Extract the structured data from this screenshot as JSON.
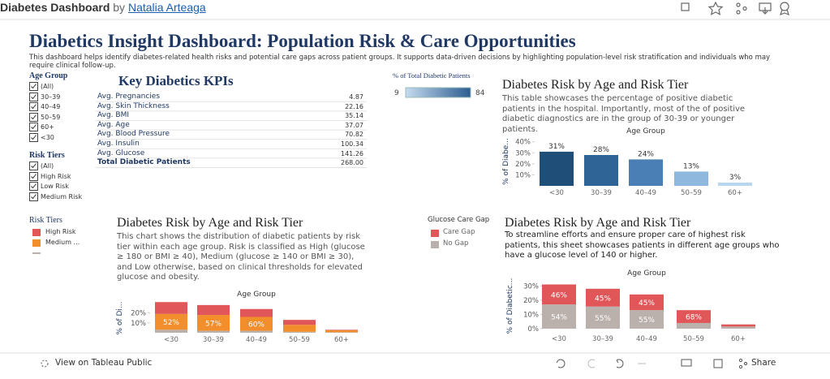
{
  "header": {
    "site": "Diabetes Dashboard",
    "by": "by",
    "author": "Natalia Arteaga"
  },
  "title": "Diabetics Insight Dashboard: Population Risk & Care Opportunities",
  "description": "This dashboard helps identify diabetes-related health risks and potential care gaps across patient groups. It supports data-driven decisions by highlighting population-level risk stratification and individuals who may require clinical follow-up.",
  "filters": [
    {
      "title": "Age Group",
      "options": [
        "(All)",
        "30–39",
        "40–49",
        "50–59",
        "60+",
        "<30"
      ]
    },
    {
      "title": "Risk Tiers",
      "options": [
        "(All)",
        "High Risk",
        "Low Risk",
        "Medium Risk"
      ]
    }
  ],
  "risk_legend": {
    "title": "Risk Tiers",
    "items": [
      {
        "label": "High Risk",
        "color": "#e15759"
      },
      {
        "label": "Medium ...",
        "color": "#f28e2b"
      }
    ]
  },
  "kpis": {
    "title": "Key Diabetics KPIs",
    "rows": [
      [
        "Avg. Pregnancies",
        "4.87"
      ],
      [
        "Avg. Skin Thickness",
        "22.16"
      ],
      [
        "Avg. BMI",
        "35.14"
      ],
      [
        "Avg. Age",
        "37.07"
      ],
      [
        "Avg. Blood Pressure",
        "70.82"
      ],
      [
        "Avg. Insulin",
        "100.34"
      ],
      [
        "Avg. Glucose",
        "141.26"
      ],
      [
        "Total Diabetic Patients",
        "268.00"
      ]
    ]
  },
  "color_legend": {
    "title": "% of Total Diabetic Patients",
    "min": 9,
    "max": 84,
    "colors": [
      "#c6dbef",
      "#2b5c8f"
    ]
  },
  "charts": [
    {
      "title": "Diabetes Risk by Age and Risk Tier",
      "description": "This table showcases the percentage of positive diabetic patients in the hospital. Importantly, most of the  of positive diabetic diagnostics are in the group of 30-39 or younger patients.",
      "axis_title": "Age Group",
      "y_label": "% of Diabe...",
      "categories": [
        "<30",
        "30–39",
        "40–49",
        "50–59",
        "60+"
      ],
      "ylim": [
        0,
        42
      ],
      "yticks": [
        {
          "value": 10,
          "label": "10%"
        },
        {
          "value": 20,
          "label": "20%"
        },
        {
          "value": 30,
          "label": "30%"
        },
        {
          "value": 40,
          "label": "40%"
        }
      ],
      "series": [
        {
          "values": [
            31,
            28,
            24,
            13,
            3
          ],
          "value_labels": [
            "31%",
            "28%",
            "24%",
            "13%",
            "3%"
          ],
          "colors": [
            "#1f4e79",
            "#2f6496",
            "#4a7fb5",
            "#8fb8de",
            "#b9d6ef"
          ]
        }
      ]
    },
    {
      "title": "Diabetes Risk by Age and Risk Tier",
      "description": "This chart shows the distribution of diabetic patients by risk tier within each age group. Risk is classified as High (glucose ≥ 180 or BMI ≥ 40), Medium (glucose ≥ 140 or BMI ≥ 30), and Low otherwise, based on clinical thresholds for elevated glucose and obesity.",
      "axis_title": "Age Group",
      "y_label": "% of Di...",
      "categories": [
        "<30",
        "30–39",
        "40–49",
        "50–59",
        "60+"
      ],
      "ylim": [
        0,
        32
      ],
      "yticks": [
        {
          "value": 10,
          "label": "10%"
        },
        {
          "value": 20,
          "label": "20%"
        }
      ],
      "series": [
        {
          "color": "#bab0ac",
          "values": [
            3,
            2,
            2,
            1,
            0.5
          ]
        },
        {
          "color": "#f28e2b",
          "values": [
            16,
            16,
            14,
            7,
            2
          ],
          "segment_labels": [
            "52%",
            "57%",
            "60%",
            null,
            null
          ]
        },
        {
          "color": "#e15759",
          "values": [
            12,
            10,
            8,
            5,
            0.5
          ]
        }
      ]
    },
    {
      "title": "Diabetes Risk by Age and Risk Tier",
      "description": "To streamline efforts and ensure proper care of highest risk patients, this sheet showcases patients in different age groups who have a glucose level of 140 or higher.",
      "axis_title": "Age Group",
      "y_label": "% of Diabetic...",
      "legend_title": "Glucose Care Gap",
      "categories": [
        "<30",
        "30–39",
        "40–49",
        "50–59",
        "60+"
      ],
      "ylim": [
        0,
        33
      ],
      "yticks": [
        {
          "value": 0,
          "label": "0%"
        },
        {
          "value": 10,
          "label": "10%"
        },
        {
          "value": 20,
          "label": "20%"
        },
        {
          "value": 30,
          "label": "30%"
        }
      ],
      "series": [
        {
          "name": "No Gap",
          "color": "#bab0ac",
          "values": [
            17,
            15.5,
            13,
            4,
            1.5
          ],
          "segment_labels": [
            "54%",
            "55%",
            "55%",
            null,
            null
          ]
        },
        {
          "name": "Care Gap",
          "color": "#e15759",
          "values": [
            14,
            12.5,
            11,
            9,
            1.5
          ],
          "segment_labels": [
            "46%",
            "45%",
            "45%",
            "68%",
            null
          ]
        }
      ]
    }
  ],
  "footer": {
    "view": "View on Tableau Public",
    "share": "Share"
  }
}
